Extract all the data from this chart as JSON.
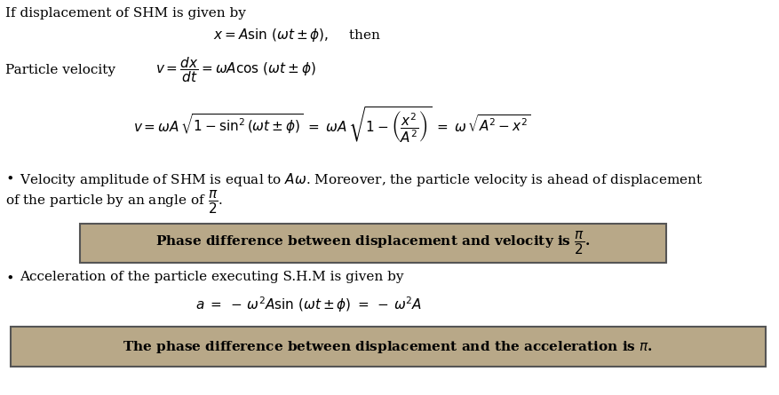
{
  "bg_color": "#ffffff",
  "text_color": "#000000",
  "box1_bg": "#b8a888",
  "box2_bg": "#b8a888",
  "box_edge": "#555555",
  "line1": "If displacement of SHM is given by",
  "line2": "$x = A \\sin\\,(\\omega t \\pm \\phi), \\quad$ then",
  "label_vel": "Particle velocity",
  "line3": "$v = \\dfrac{dx}{dt} = \\omega A \\cos\\,(\\omega t \\pm \\phi)$",
  "line4": "$v = \\omega A\\,\\sqrt{1 - \\sin^2(\\omega t \\pm \\phi)} \\;=\\; \\omega A\\,\\sqrt{1 - \\left(\\dfrac{x^2}{A^2}\\right)} \\;=\\; \\omega\\,\\sqrt{A^2 - x^2}$",
  "bullet1": "Velocity amplitude of SHM is equal to $A\\omega$. Moreover, the particle velocity is ahead of displacement",
  "bullet1b": "of the particle by an angle of $\\dfrac{\\pi}{2}$.",
  "box1_text": "Phase difference between displacement and velocity is $\\dfrac{\\pi}{2}$.",
  "bullet2": "Acceleration of the particle executing S.H.M is given by",
  "line5": "$a \\;=\\; -\\,\\omega^2 A \\sin\\,(\\omega t \\pm \\phi) \\;=\\; -\\,\\omega^2 A$",
  "box2_text": "The phase difference between displacement and the acceleration is $\\pi$.",
  "fs": 11.0
}
